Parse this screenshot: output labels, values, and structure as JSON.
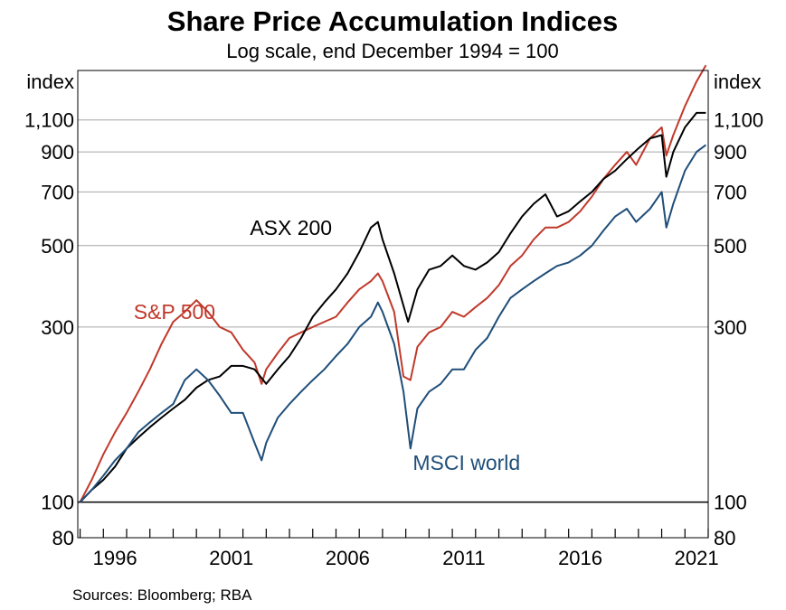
{
  "chart_data": {
    "type": "line",
    "title": "Share Price Accumulation Indices",
    "subtitle": "Log scale, end December 1994 = 100",
    "y_unit_label_left": "index",
    "y_unit_label_right": "index",
    "y_scale": "log",
    "ylim": [
      80,
      1500
    ],
    "xlim": [
      1994.9,
      2022.0
    ],
    "y_ticks": [
      80,
      100,
      300,
      500,
      700,
      900,
      1100
    ],
    "y_tick_labels": [
      "80",
      "100",
      "300",
      "500",
      "700",
      "900",
      "1,100"
    ],
    "y_gridlines": [
      300,
      500,
      700,
      900,
      1100
    ],
    "baseline": 100,
    "x_tick_labels": [
      {
        "label": "1996",
        "x": 1996.5
      },
      {
        "label": "2001",
        "x": 2001.5
      },
      {
        "label": "2006",
        "x": 2006.5
      },
      {
        "label": "2011",
        "x": 2011.5
      },
      {
        "label": "2016",
        "x": 2016.5
      },
      {
        "label": "2021",
        "x": 2021.5
      }
    ],
    "series": [
      {
        "name": "S&P 500",
        "color": "#c0392b",
        "x": [
          1995.0,
          1995.5,
          1996.0,
          1996.5,
          1997.0,
          1997.5,
          1998.0,
          1998.5,
          1999.0,
          1999.5,
          2000.0,
          2000.5,
          2001.0,
          2001.5,
          2002.0,
          2002.5,
          2002.8,
          2003.0,
          2003.5,
          2004.0,
          2004.5,
          2005.0,
          2005.5,
          2006.0,
          2006.5,
          2007.0,
          2007.5,
          2007.8,
          2008.0,
          2008.5,
          2008.9,
          2009.2,
          2009.5,
          2010.0,
          2010.5,
          2011.0,
          2011.5,
          2012.0,
          2012.5,
          2013.0,
          2013.5,
          2014.0,
          2014.5,
          2015.0,
          2015.5,
          2016.0,
          2016.5,
          2017.0,
          2017.5,
          2018.0,
          2018.5,
          2018.9,
          2019.5,
          2020.0,
          2020.2,
          2020.5,
          2021.0,
          2021.5,
          2021.9
        ],
        "values": [
          100,
          115,
          135,
          155,
          175,
          200,
          230,
          270,
          310,
          330,
          355,
          330,
          300,
          290,
          260,
          240,
          210,
          230,
          255,
          280,
          290,
          300,
          310,
          320,
          350,
          380,
          400,
          420,
          400,
          330,
          220,
          215,
          265,
          290,
          300,
          330,
          320,
          340,
          360,
          390,
          440,
          470,
          520,
          560,
          560,
          580,
          620,
          680,
          760,
          830,
          900,
          830,
          980,
          1050,
          880,
          1000,
          1200,
          1400,
          1550
        ]
      },
      {
        "name": "ASX 200",
        "color": "#000000",
        "x": [
          1995.0,
          1995.5,
          1996.0,
          1996.5,
          1997.0,
          1997.5,
          1998.0,
          1998.5,
          1999.0,
          1999.5,
          2000.0,
          2000.5,
          2001.0,
          2001.5,
          2002.0,
          2002.5,
          2003.0,
          2003.5,
          2004.0,
          2004.5,
          2005.0,
          2005.5,
          2006.0,
          2006.5,
          2007.0,
          2007.5,
          2007.8,
          2008.0,
          2008.5,
          2009.1,
          2009.5,
          2010.0,
          2010.5,
          2011.0,
          2011.5,
          2012.0,
          2012.5,
          2013.0,
          2013.5,
          2014.0,
          2014.5,
          2015.0,
          2015.5,
          2016.0,
          2016.5,
          2017.0,
          2017.5,
          2018.0,
          2018.5,
          2019.0,
          2019.5,
          2020.0,
          2020.2,
          2020.5,
          2021.0,
          2021.5,
          2021.9
        ],
        "values": [
          100,
          108,
          115,
          125,
          140,
          150,
          160,
          170,
          180,
          190,
          205,
          215,
          220,
          235,
          235,
          230,
          210,
          230,
          250,
          280,
          320,
          350,
          380,
          420,
          480,
          560,
          580,
          520,
          420,
          310,
          380,
          430,
          440,
          470,
          440,
          430,
          450,
          480,
          540,
          600,
          650,
          690,
          600,
          620,
          660,
          700,
          760,
          800,
          860,
          920,
          980,
          1000,
          770,
          900,
          1050,
          1150,
          1150
        ]
      },
      {
        "name": "MSCI world",
        "color": "#1f4e79",
        "x": [
          1995.0,
          1995.5,
          1996.0,
          1996.5,
          1997.0,
          1997.5,
          1998.0,
          1998.5,
          1999.0,
          1999.5,
          2000.0,
          2000.5,
          2001.0,
          2001.5,
          2002.0,
          2002.5,
          2002.8,
          2003.0,
          2003.5,
          2004.0,
          2004.5,
          2005.0,
          2005.5,
          2006.0,
          2006.5,
          2007.0,
          2007.5,
          2007.8,
          2008.0,
          2008.5,
          2008.9,
          2009.2,
          2009.5,
          2010.0,
          2010.5,
          2011.0,
          2011.5,
          2012.0,
          2012.5,
          2013.0,
          2013.5,
          2014.0,
          2014.5,
          2015.0,
          2015.5,
          2016.0,
          2016.5,
          2017.0,
          2017.5,
          2018.0,
          2018.5,
          2018.9,
          2019.5,
          2020.0,
          2020.2,
          2020.5,
          2021.0,
          2021.5,
          2021.9
        ],
        "values": [
          100,
          108,
          118,
          130,
          140,
          155,
          165,
          175,
          185,
          215,
          230,
          215,
          195,
          175,
          175,
          145,
          130,
          145,
          170,
          185,
          200,
          215,
          230,
          250,
          270,
          300,
          320,
          350,
          330,
          270,
          200,
          140,
          180,
          200,
          210,
          230,
          230,
          260,
          280,
          320,
          360,
          380,
          400,
          420,
          440,
          450,
          470,
          500,
          550,
          600,
          630,
          580,
          630,
          700,
          560,
          650,
          800,
          900,
          940
        ]
      }
    ],
    "annotations": [
      {
        "text": "S&P 500",
        "series": "S&P 500"
      },
      {
        "text": "ASX 200",
        "series": "ASX 200"
      },
      {
        "text": "MSCI world",
        "series": "MSCI world"
      }
    ],
    "grid": true,
    "legend": "none (inline series labels)"
  },
  "source_note": "Sources: Bloomberg; RBA"
}
